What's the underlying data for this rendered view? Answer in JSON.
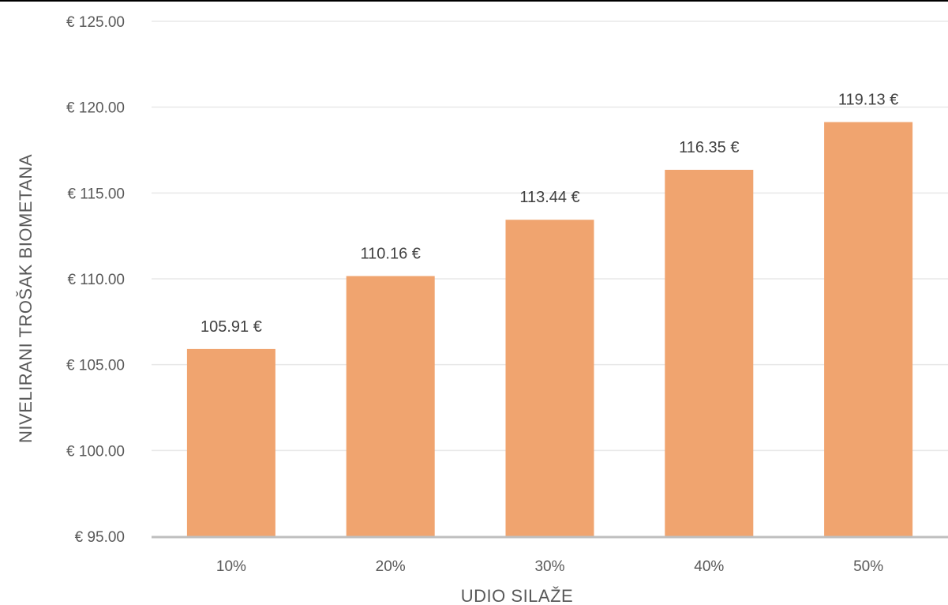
{
  "chart_data": {
    "type": "bar",
    "title": "",
    "xlabel": "UDIO SILAŽE",
    "ylabel": "NIVELIRANI TROŠAK BIOMETANA",
    "categories": [
      "10%",
      "20%",
      "30%",
      "40%",
      "50%"
    ],
    "values": [
      105.91,
      110.16,
      113.44,
      116.35,
      119.13
    ],
    "data_labels": [
      "105.91 €",
      "110.16 €",
      "113.44 €",
      "116.35 €",
      "119.13 €"
    ],
    "ylim": [
      95,
      125
    ],
    "yticks": [
      95,
      100,
      105,
      110,
      115,
      120,
      125
    ],
    "ytick_labels": [
      "€ 95.00",
      "€ 100.00",
      "€ 105.00",
      "€ 110.00",
      "€ 115.00",
      "€ 120.00",
      "€ 125.00"
    ],
    "grid": true,
    "legend": "none",
    "bar_color": "#F0A46F",
    "grid_color": "#E8E8E8",
    "axis_color": "#BFBFBF"
  }
}
